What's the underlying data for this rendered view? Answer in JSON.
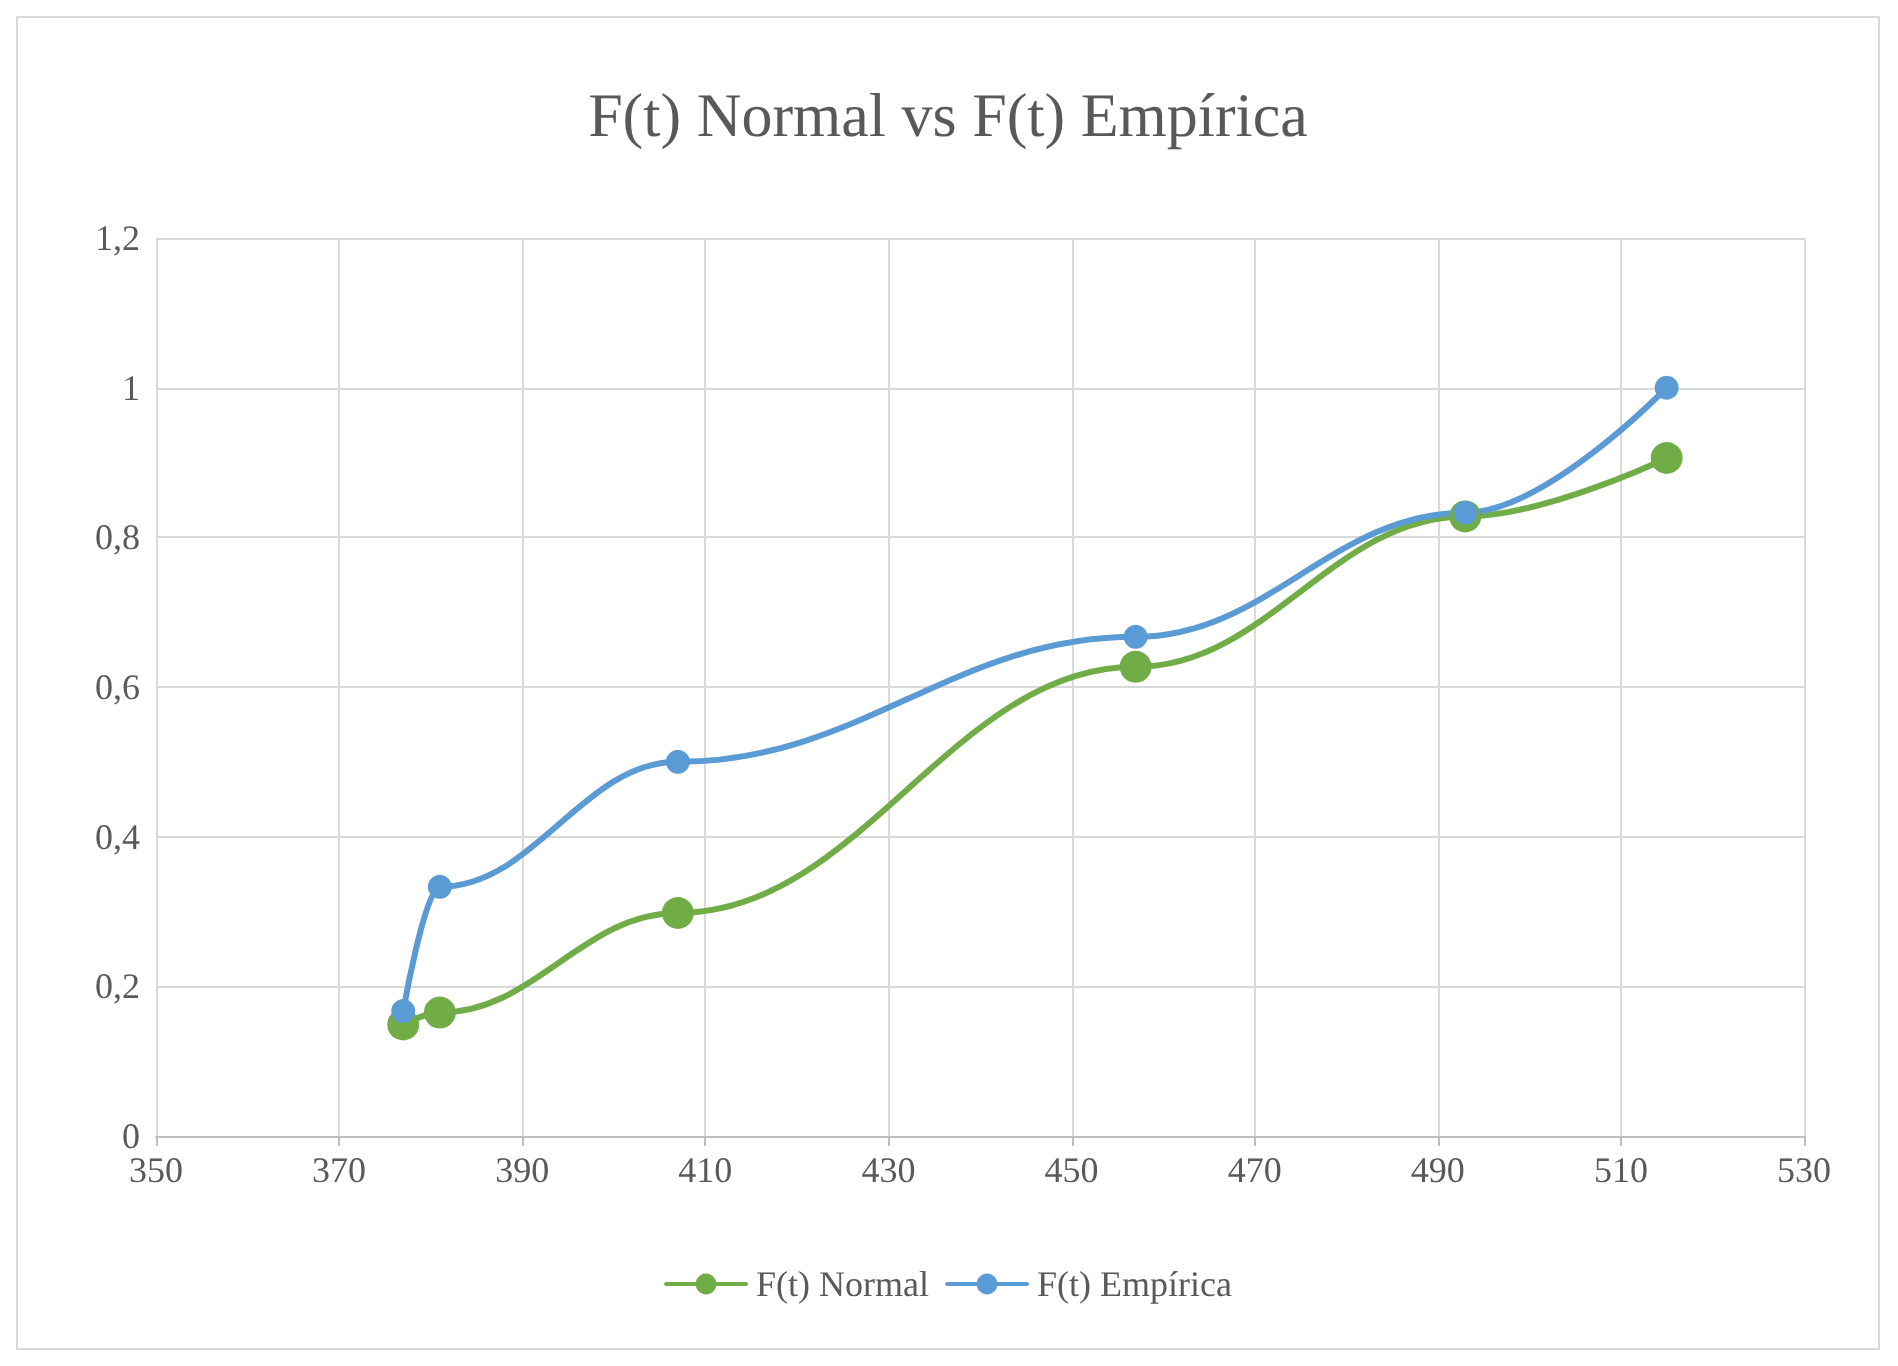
{
  "chart_data": {
    "type": "line",
    "title": "F(t) Normal vs F(t) Empírica",
    "x": [
      377,
      381,
      407,
      457,
      493,
      515
    ],
    "series": [
      {
        "name": "F(t) Normal",
        "color": "#70ad47",
        "values": [
          0.149,
          0.165,
          0.298,
          0.627,
          0.828,
          0.906
        ]
      },
      {
        "name": "F(t) Empírica",
        "color": "#5b9bd5",
        "values": [
          0.167,
          0.333,
          0.5,
          0.667,
          0.833,
          1
        ]
      }
    ],
    "xlim": [
      350,
      530
    ],
    "xticks": [
      350,
      370,
      390,
      410,
      430,
      450,
      470,
      490,
      510,
      530
    ],
    "ylim": [
      0,
      1.2
    ],
    "yticks": [
      0,
      {
        "value": 0.2,
        "label": "0,2"
      },
      {
        "value": 0.4,
        "label": "0,4"
      },
      {
        "value": 0.6,
        "label": "0,6"
      },
      {
        "value": 0.8,
        "label": "0,8"
      },
      1,
      {
        "value": 1.2,
        "label": "1,2"
      }
    ],
    "grid": true,
    "legend": "bottom",
    "marker": "circle",
    "line_style": "solid"
  }
}
